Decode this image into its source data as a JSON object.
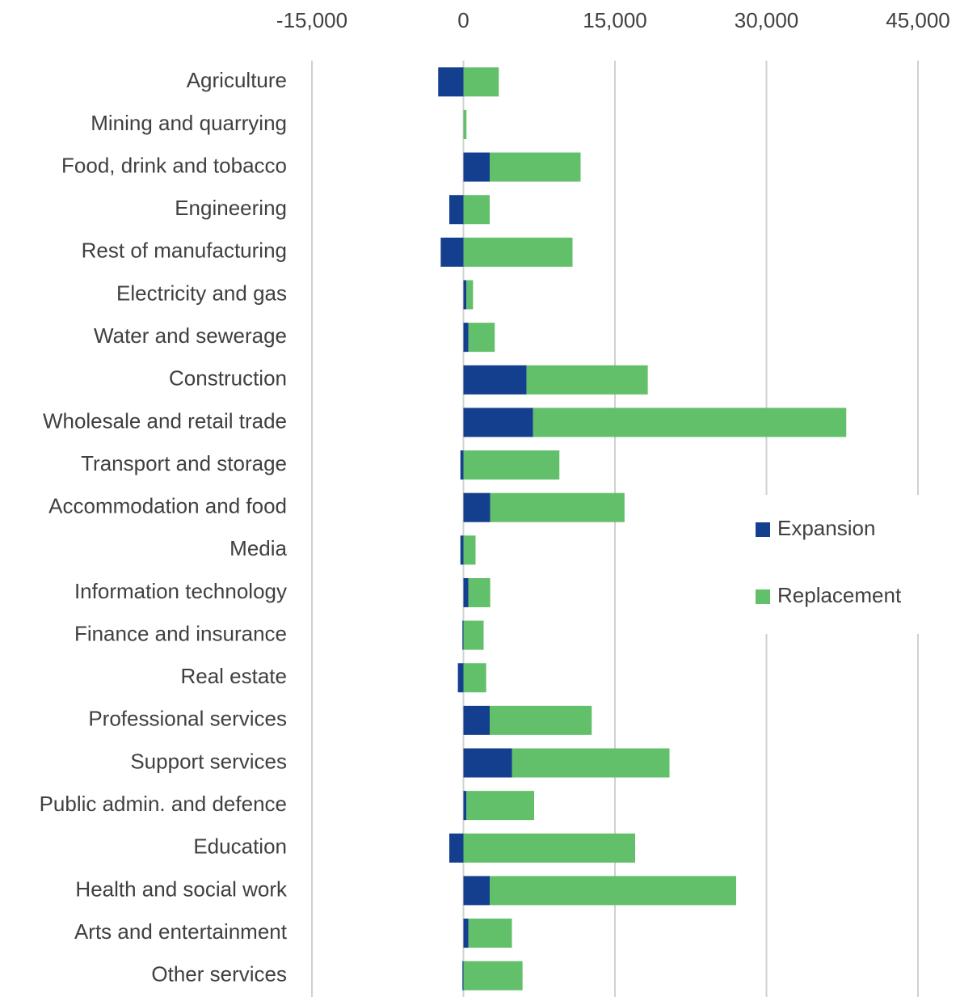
{
  "chart_data": {
    "type": "stacked_barh",
    "categories": [
      "Agriculture",
      "Mining and quarrying",
      "Food, drink and tobacco",
      "Engineering",
      "Rest of manufacturing",
      "Electricity and gas",
      "Water and sewerage",
      "Construction",
      "Wholesale and retail trade",
      "Transport and storage",
      "Accommodation and food",
      "Media",
      "Information technology",
      "Finance and insurance",
      "Real estate",
      "Professional services",
      "Support services",
      "Public admin. and defence",
      "Education",
      "Health and social work",
      "Arts and entertainment",
      "Other services"
    ],
    "series": [
      {
        "name": "Expansion",
        "color": "#143f8f",
        "values": [
          -2500,
          0,
          2600,
          -1400,
          -2250,
          300,
          500,
          6250,
          6900,
          -300,
          2650,
          -300,
          500,
          -100,
          -550,
          2600,
          4800,
          300,
          -1400,
          2600,
          500,
          -100
        ]
      },
      {
        "name": "Replacement",
        "color": "#62bf6a",
        "values": [
          3500,
          300,
          9000,
          2600,
          10800,
          650,
          2600,
          12000,
          31000,
          9500,
          13300,
          1200,
          2150,
          2000,
          2250,
          10100,
          15600,
          6700,
          17000,
          24400,
          4300,
          5850
        ]
      }
    ],
    "xlim": [
      -15000,
      45000
    ],
    "xticks": [
      {
        "value": -15000,
        "label": "-15,000"
      },
      0,
      {
        "value": 15000,
        "label": "15,000"
      },
      {
        "value": 30000,
        "label": "30,000"
      },
      {
        "value": 45000,
        "label": "45,000"
      }
    ],
    "grid": true,
    "legend": "right"
  }
}
